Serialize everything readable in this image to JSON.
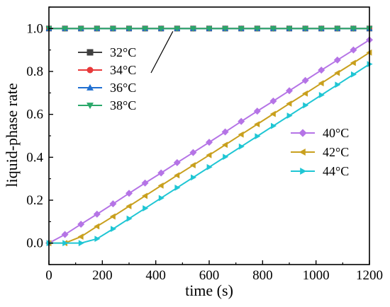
{
  "chart_data": {
    "type": "line",
    "title": "",
    "xlabel": "time (s)",
    "ylabel": "liquid-phase rate",
    "xlim": [
      0,
      1200
    ],
    "ylim": [
      -0.1,
      1.1
    ],
    "xticks": [
      0,
      200,
      400,
      600,
      800,
      1000,
      1200
    ],
    "xtick_labels": [
      "0",
      "200",
      "400",
      "600",
      "800",
      "1000",
      "1200"
    ],
    "yticks": [
      0.0,
      0.2,
      0.4,
      0.6,
      0.8,
      1.0
    ],
    "ytick_labels": [
      "0.0",
      "0.2",
      "0.4",
      "0.6",
      "0.8",
      "1.0"
    ],
    "grid": false,
    "x": [
      0,
      60,
      120,
      180,
      240,
      300,
      360,
      420,
      480,
      540,
      600,
      660,
      720,
      780,
      840,
      900,
      960,
      1020,
      1080,
      1140,
      1200
    ],
    "series": [
      {
        "name": "32°C",
        "color": "#3f3f3f",
        "marker": "square",
        "values": [
          1,
          1,
          1,
          1,
          1,
          1,
          1,
          1,
          1,
          1,
          1,
          1,
          1,
          1,
          1,
          1,
          1,
          1,
          1,
          1,
          1
        ]
      },
      {
        "name": "34°C",
        "color": "#e8393a",
        "marker": "circle",
        "values": [
          1,
          1,
          1,
          1,
          1,
          1,
          1,
          1,
          1,
          1,
          1,
          1,
          1,
          1,
          1,
          1,
          1,
          1,
          1,
          1,
          1
        ]
      },
      {
        "name": "36°C",
        "color": "#1f6fd1",
        "marker": "triangle-up",
        "values": [
          1,
          1,
          1,
          1,
          1,
          1,
          1,
          1,
          1,
          1,
          1,
          1,
          1,
          1,
          1,
          1,
          1,
          1,
          1,
          1,
          1
        ]
      },
      {
        "name": "38°C",
        "color": "#2aa86a",
        "marker": "triangle-down",
        "values": [
          1,
          1,
          1,
          1,
          1,
          1,
          1,
          1,
          1,
          1,
          1,
          1,
          1,
          1,
          1,
          1,
          1,
          1,
          1,
          1,
          1
        ]
      },
      {
        "name": "40°C",
        "color": "#b574e6",
        "marker": "diamond",
        "values": [
          0.0,
          0.04,
          0.088,
          0.135,
          0.183,
          0.232,
          0.28,
          0.327,
          0.375,
          0.422,
          0.47,
          0.518,
          0.567,
          0.615,
          0.662,
          0.71,
          0.758,
          0.806,
          0.853,
          0.9,
          0.947
        ]
      },
      {
        "name": "42°C",
        "color": "#c9a01e",
        "marker": "triangle-left",
        "values": [
          0.0,
          0.0,
          0.03,
          0.078,
          0.124,
          0.172,
          0.22,
          0.268,
          0.316,
          0.363,
          0.41,
          0.458,
          0.506,
          0.554,
          0.602,
          0.65,
          0.697,
          0.745,
          0.793,
          0.84,
          0.888
        ]
      },
      {
        "name": "44°C",
        "color": "#1fc6d4",
        "marker": "triangle-right",
        "values": [
          0.0,
          0.0,
          0.0,
          0.02,
          0.066,
          0.114,
          0.162,
          0.21,
          0.258,
          0.306,
          0.354,
          0.402,
          0.45,
          0.498,
          0.546,
          0.594,
          0.642,
          0.69,
          0.738,
          0.786,
          0.834
        ]
      }
    ],
    "legends": [
      {
        "position": "top-left",
        "series": [
          "32°C",
          "34°C",
          "36°C",
          "38°C"
        ],
        "callout": {
          "target_x": 480,
          "target_y": 1.0
        }
      },
      {
        "position": "center-right",
        "series": [
          "40°C",
          "42°C",
          "44°C"
        ]
      }
    ]
  }
}
